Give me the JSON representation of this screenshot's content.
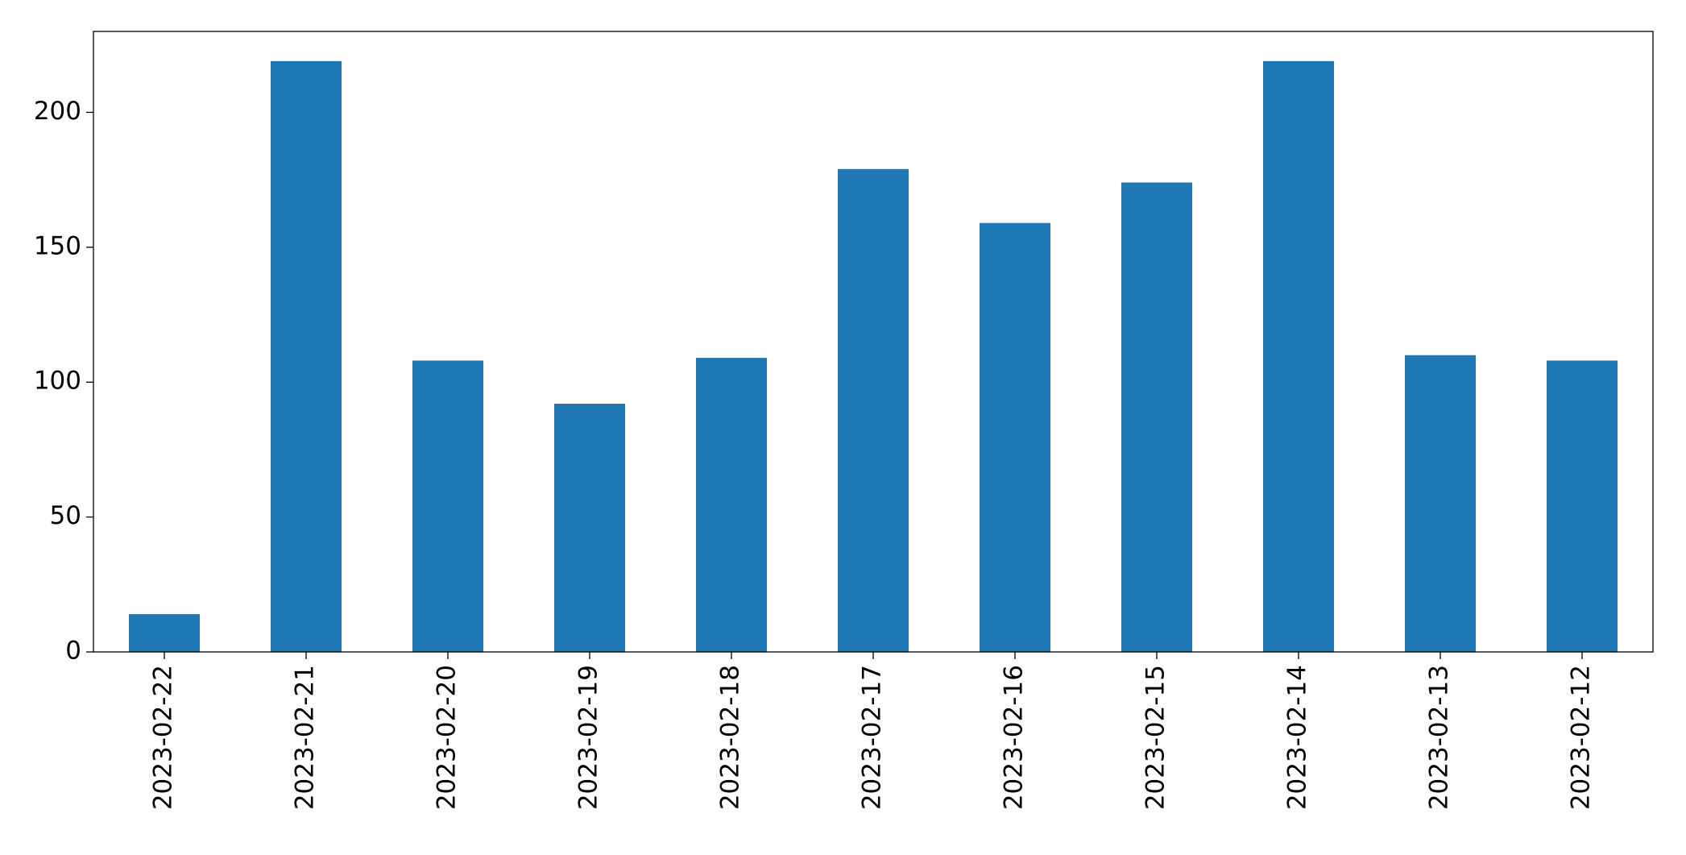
{
  "chart_data": {
    "type": "bar",
    "categories": [
      "2023-02-22",
      "2023-02-21",
      "2023-02-20",
      "2023-02-19",
      "2023-02-18",
      "2023-02-17",
      "2023-02-16",
      "2023-02-15",
      "2023-02-14",
      "2023-02-13",
      "2023-02-12"
    ],
    "values": [
      14,
      219,
      108,
      92,
      109,
      179,
      159,
      174,
      219,
      110,
      108
    ],
    "color": "#1f77b4",
    "ylim": [
      0,
      230
    ],
    "yticks": [
      0,
      50,
      100,
      150,
      200
    ],
    "grid": false
  }
}
